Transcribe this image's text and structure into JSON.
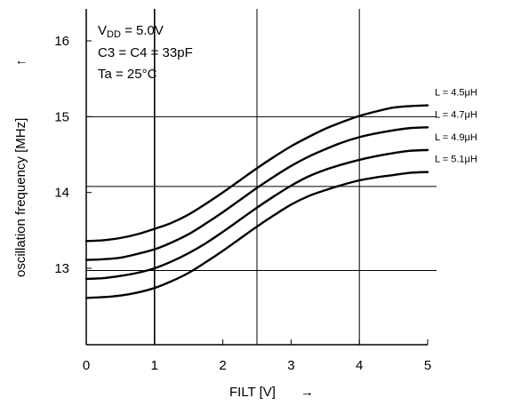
{
  "chart_data": {
    "type": "line",
    "title": "",
    "xlabel": "FILT [V]",
    "xlabel_arrow": "→",
    "ylabel": "oscillation frequency [MHz]",
    "ylabel_arrow": "↑",
    "xlim": [
      0,
      5
    ],
    "ylim": [
      12,
      17
    ],
    "xticks": [
      "0",
      "1",
      "2",
      "3",
      "4",
      "5"
    ],
    "yticks": [
      "13",
      "14",
      "15",
      "16"
    ],
    "annotations": {
      "vdd_label": "V",
      "vdd_sub": "DD",
      "vdd_value": " = 5.0V",
      "cap": "C3 = C4 = 33pF",
      "temp": "Ta = 25°C"
    },
    "reference_lines": {
      "vertical_x": [
        1,
        2.5,
        4
      ],
      "horizontal_y": [
        15,
        14.08,
        12.97
      ]
    },
    "x": [
      0,
      0.25,
      0.5,
      0.75,
      1,
      1.25,
      1.5,
      1.75,
      2,
      2.25,
      2.5,
      2.75,
      3,
      3.25,
      3.5,
      3.75,
      4,
      4.25,
      4.5,
      4.75,
      5
    ],
    "series": [
      {
        "name": "L = 4.5μH",
        "values": [
          13.36,
          13.37,
          13.4,
          13.45,
          13.52,
          13.6,
          13.71,
          13.85,
          14.0,
          14.16,
          14.32,
          14.47,
          14.61,
          14.73,
          14.84,
          14.93,
          15.01,
          15.07,
          15.12,
          15.14,
          15.15
        ]
      },
      {
        "name": "L = 4.7μH",
        "values": [
          13.11,
          13.12,
          13.14,
          13.19,
          13.25,
          13.34,
          13.45,
          13.59,
          13.74,
          13.9,
          14.06,
          14.21,
          14.35,
          14.47,
          14.57,
          14.66,
          14.73,
          14.78,
          14.82,
          14.85,
          14.86
        ]
      },
      {
        "name": "L = 4.9μH",
        "values": [
          12.86,
          12.87,
          12.9,
          12.94,
          13.0,
          13.09,
          13.2,
          13.33,
          13.48,
          13.64,
          13.8,
          13.95,
          14.09,
          14.21,
          14.3,
          14.37,
          14.43,
          14.48,
          14.52,
          14.55,
          14.56
        ]
      },
      {
        "name": "L = 5.1μH",
        "values": [
          12.61,
          12.62,
          12.64,
          12.68,
          12.74,
          12.83,
          12.94,
          13.08,
          13.23,
          13.39,
          13.55,
          13.7,
          13.84,
          13.95,
          14.03,
          14.1,
          14.16,
          14.2,
          14.23,
          14.26,
          14.27
        ]
      }
    ]
  }
}
